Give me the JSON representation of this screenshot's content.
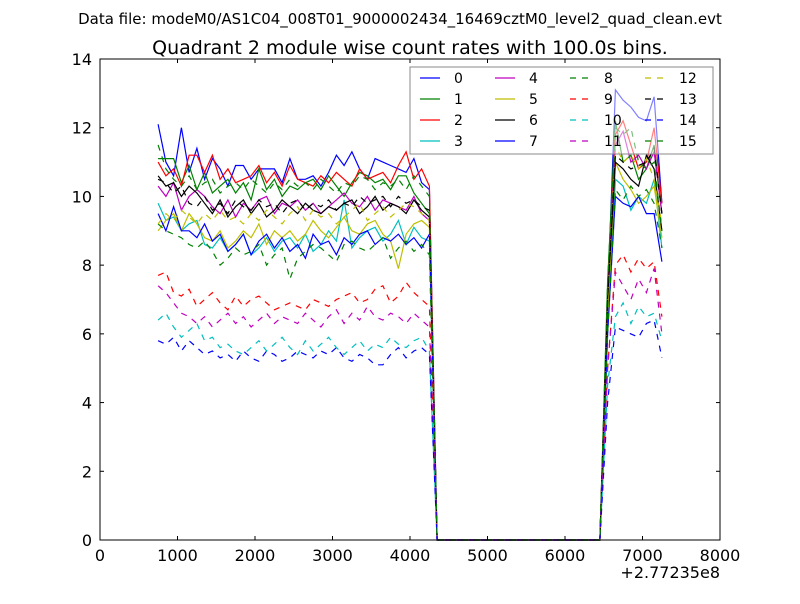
{
  "chart_data": {
    "type": "line",
    "suptitle": "Data file: modeM0/AS1C04_008T01_9000002434_16469cztM0_level2_quad_clean.evt",
    "title": "Quadrant 2 module wise count rates with 100.0s bins.",
    "xlabel": "",
    "ylabel": "",
    "x_offset_label": "+2.77235e8",
    "xlim": [
      0,
      8000
    ],
    "ylim": [
      0,
      14
    ],
    "xticks": [
      "0",
      "1000",
      "2000",
      "3000",
      "4000",
      "5000",
      "6000",
      "7000",
      "8000"
    ],
    "yticks": [
      "0",
      "2",
      "4",
      "6",
      "8",
      "10",
      "12",
      "14"
    ],
    "grid": false,
    "legend_placement": "top-right",
    "x_start": 750,
    "x_step": 100,
    "series": [
      {
        "name": "0",
        "color": "#0000ff",
        "dash": "solid",
        "values": [
          12.1,
          11.0,
          10.6,
          12.0,
          10.7,
          11.4,
          10.5,
          11.1,
          10.8,
          10.3,
          10.9,
          10.9,
          10.5,
          10.8,
          10.8,
          10.8,
          10.4,
          11.1,
          10.5,
          10.5,
          10.6,
          10.3,
          10.7,
          11.2,
          10.9,
          11.3,
          10.8,
          10.5,
          11.1,
          11.0,
          10.9,
          10.8,
          10.7,
          11.1,
          10.4,
          10.2,
          0,
          0,
          0,
          0,
          0,
          0,
          0,
          0,
          0,
          0,
          0,
          0,
          0,
          0,
          0,
          0,
          0,
          0,
          0,
          0,
          0,
          0,
          7.0,
          13.1,
          12.8,
          12.6,
          12.3,
          12.2,
          12.9,
          9.8
        ]
      },
      {
        "name": "1",
        "color": "#008000",
        "dash": "solid",
        "values": [
          11.1,
          11.1,
          11.1,
          10.4,
          10.9,
          10.2,
          10.7,
          10.1,
          10.3,
          10.5,
          10.1,
          10.4,
          9.9,
          10.8,
          10.2,
          10.5,
          10.0,
          10.3,
          10.2,
          10.4,
          10.5,
          10.2,
          10.6,
          10.3,
          10.0,
          10.4,
          10.7,
          10.6,
          10.4,
          10.5,
          10.2,
          10.6,
          10.6,
          10.1,
          9.8,
          9.5,
          0,
          0,
          0,
          0,
          0,
          0,
          0,
          0,
          0,
          0,
          0,
          0,
          0,
          0,
          0,
          0,
          0,
          0,
          0,
          0,
          0,
          0,
          7.5,
          12.2,
          11.0,
          11.2,
          10.5,
          10.8,
          11.5,
          9.5
        ]
      },
      {
        "name": "2",
        "color": "#ff0000",
        "dash": "solid",
        "values": [
          11.0,
          10.6,
          10.8,
          10.3,
          11.2,
          11.2,
          10.7,
          11.2,
          10.5,
          10.8,
          10.4,
          10.5,
          10.6,
          10.9,
          10.4,
          10.7,
          10.3,
          10.9,
          10.5,
          10.4,
          10.3,
          10.6,
          10.4,
          10.7,
          10.5,
          10.3,
          10.8,
          10.5,
          10.6,
          10.7,
          10.4,
          10.9,
          11.3,
          10.5,
          10.8,
          10.3,
          0,
          0,
          0,
          0,
          0,
          0,
          0,
          0,
          0,
          0,
          0,
          0,
          0,
          0,
          0,
          0,
          0,
          0,
          0,
          0,
          0,
          0,
          7.0,
          11.8,
          12.2,
          11.5,
          10.8,
          11.0,
          12.0,
          9.8
        ]
      },
      {
        "name": "3",
        "color": "#00bfbf",
        "dash": "solid",
        "values": [
          9.8,
          9.3,
          9.4,
          9.0,
          9.2,
          9.3,
          8.6,
          8.5,
          8.8,
          8.4,
          8.6,
          8.9,
          8.3,
          8.5,
          8.8,
          8.4,
          8.7,
          8.8,
          8.5,
          8.9,
          8.4,
          8.6,
          9.0,
          8.7,
          9.9,
          8.5,
          8.8,
          9.0,
          9.1,
          8.7,
          8.9,
          9.3,
          8.6,
          9.1,
          8.8,
          8.7,
          0,
          0,
          0,
          0,
          0,
          0,
          0,
          0,
          0,
          0,
          0,
          0,
          0,
          0,
          0,
          0,
          0,
          0,
          0,
          0,
          0,
          0,
          6.0,
          10.5,
          10.3,
          9.6,
          10.0,
          9.8,
          10.5,
          8.5
        ]
      },
      {
        "name": "4",
        "color": "#bf00bf",
        "dash": "solid",
        "values": [
          10.3,
          10.0,
          10.4,
          9.6,
          10.0,
          10.2,
          10.0,
          9.7,
          9.5,
          9.9,
          9.4,
          9.8,
          9.6,
          9.9,
          10.0,
          9.5,
          9.8,
          9.7,
          9.9,
          9.6,
          9.8,
          9.5,
          9.7,
          9.9,
          10.1,
          9.8,
          9.7,
          10.0,
          9.6,
          9.9,
          9.8,
          9.7,
          9.6,
          10.0,
          9.5,
          9.3,
          0,
          0,
          0,
          0,
          0,
          0,
          0,
          0,
          0,
          0,
          0,
          0,
          0,
          0,
          0,
          0,
          0,
          0,
          0,
          0,
          0,
          0,
          7.0,
          11.5,
          11.9,
          11.0,
          11.2,
          10.8,
          11.3,
          9.5
        ]
      },
      {
        "name": "5",
        "color": "#bfbf00",
        "dash": "solid",
        "values": [
          9.0,
          9.3,
          9.5,
          9.0,
          9.5,
          9.2,
          8.8,
          8.7,
          9.0,
          8.5,
          8.7,
          9.0,
          8.8,
          9.2,
          8.6,
          9.0,
          8.8,
          9.0,
          8.7,
          8.9,
          9.3,
          9.0,
          8.8,
          9.1,
          9.4,
          9.0,
          8.9,
          9.2,
          9.3,
          8.9,
          8.7,
          7.9,
          8.9,
          9.2,
          9.3,
          9.1,
          0,
          0,
          0,
          0,
          0,
          0,
          0,
          0,
          0,
          0,
          0,
          0,
          0,
          0,
          0,
          0,
          0,
          0,
          0,
          0,
          0,
          0,
          6.5,
          11.0,
          10.5,
          10.2,
          9.8,
          10.0,
          10.3,
          8.8
        ]
      },
      {
        "name": "6",
        "color": "#000000",
        "dash": "solid",
        "values": [
          10.6,
          10.3,
          10.4,
          10.0,
          10.3,
          10.1,
          9.8,
          9.5,
          9.9,
          9.4,
          9.7,
          9.9,
          9.5,
          9.8,
          9.4,
          9.6,
          9.9,
          9.7,
          9.5,
          9.8,
          9.6,
          9.5,
          9.7,
          9.6,
          9.8,
          9.9,
          9.5,
          9.7,
          10.0,
          9.6,
          9.8,
          9.7,
          9.5,
          9.9,
          9.6,
          9.4,
          0,
          0,
          0,
          0,
          0,
          0,
          0,
          0,
          0,
          0,
          0,
          0,
          0,
          0,
          0,
          0,
          0,
          0,
          0,
          0,
          0,
          0,
          7.0,
          11.0,
          10.8,
          10.5,
          10.3,
          11.2,
          10.8,
          9.0
        ]
      },
      {
        "name": "7",
        "color": "#0000ff",
        "dash": "solid",
        "values": [
          9.5,
          9.0,
          9.7,
          9.0,
          9.0,
          8.8,
          9.2,
          8.7,
          8.9,
          8.4,
          8.6,
          8.9,
          8.3,
          8.7,
          8.9,
          8.5,
          8.8,
          8.4,
          8.6,
          8.2,
          8.9,
          8.6,
          8.7,
          8.3,
          8.8,
          8.6,
          8.9,
          9.0,
          8.6,
          8.8,
          8.7,
          8.9,
          8.6,
          8.8,
          8.5,
          8.9,
          0,
          0,
          0,
          0,
          0,
          0,
          0,
          0,
          0,
          0,
          0,
          0,
          0,
          0,
          0,
          0,
          0,
          0,
          0,
          0,
          0,
          0,
          6.0,
          10.0,
          9.8,
          9.7,
          10.0,
          9.5,
          9.5,
          8.1
        ]
      },
      {
        "name": "8",
        "color": "#008000",
        "dash": "dashed",
        "values": [
          9.2,
          9.0,
          8.9,
          8.8,
          8.6,
          8.5,
          8.7,
          8.4,
          8.0,
          8.2,
          8.5,
          8.3,
          8.4,
          8.6,
          8.0,
          8.3,
          8.5,
          7.6,
          8.2,
          8.4,
          8.6,
          8.5,
          8.3,
          8.1,
          8.6,
          8.7,
          8.5,
          8.4,
          8.6,
          8.8,
          8.2,
          8.5,
          8.7,
          8.4,
          8.6,
          8.3,
          0,
          0,
          0,
          0,
          0,
          0,
          0,
          0,
          0,
          0,
          0,
          0,
          0,
          0,
          0,
          0,
          0,
          0,
          0,
          0,
          0,
          0,
          6.0,
          10.2,
          9.9,
          10.3,
          10.0,
          10.2,
          9.8,
          8.5
        ]
      },
      {
        "name": "9",
        "color": "#ff0000",
        "dash": "dashed",
        "values": [
          7.7,
          7.8,
          7.2,
          7.1,
          7.3,
          6.8,
          7.0,
          7.2,
          6.9,
          6.7,
          7.1,
          6.8,
          7.0,
          7.1,
          6.9,
          6.7,
          6.8,
          6.9,
          6.8,
          6.7,
          7.0,
          6.9,
          6.8,
          7.0,
          7.1,
          7.2,
          6.9,
          7.0,
          7.3,
          7.4,
          6.9,
          7.1,
          7.5,
          7.2,
          7.0,
          6.8,
          0,
          0,
          0,
          0,
          0,
          0,
          0,
          0,
          0,
          0,
          0,
          0,
          0,
          0,
          0,
          0,
          0,
          0,
          0,
          0,
          0,
          0,
          5.0,
          8.0,
          8.3,
          7.8,
          8.2,
          7.9,
          8.1,
          6.5
        ]
      },
      {
        "name": "10",
        "color": "#00bfbf",
        "dash": "dashed",
        "values": [
          6.4,
          6.6,
          6.2,
          5.9,
          6.1,
          6.3,
          5.8,
          5.9,
          5.6,
          5.7,
          5.5,
          5.4,
          5.6,
          5.8,
          5.5,
          5.7,
          5.9,
          5.6,
          5.4,
          5.8,
          5.5,
          5.7,
          5.9,
          5.6,
          5.4,
          5.6,
          5.8,
          5.5,
          5.7,
          5.6,
          5.9,
          5.7,
          5.6,
          5.8,
          5.9,
          5.5,
          0,
          0,
          0,
          0,
          0,
          0,
          0,
          0,
          0,
          0,
          0,
          0,
          0,
          0,
          0,
          0,
          0,
          0,
          0,
          0,
          0,
          0,
          4.5,
          6.5,
          6.9,
          6.3,
          6.8,
          6.5,
          6.6,
          5.8
        ]
      },
      {
        "name": "11",
        "color": "#bf00bf",
        "dash": "dashed",
        "values": [
          7.4,
          7.2,
          6.9,
          6.6,
          6.5,
          6.3,
          6.5,
          6.2,
          6.4,
          6.6,
          6.3,
          6.5,
          6.2,
          6.4,
          6.6,
          6.3,
          6.5,
          6.4,
          6.3,
          6.6,
          6.4,
          6.2,
          6.5,
          6.7,
          6.3,
          6.6,
          6.4,
          6.8,
          6.5,
          6.4,
          6.6,
          6.5,
          6.3,
          6.6,
          6.4,
          6.2,
          0,
          0,
          0,
          0,
          0,
          0,
          0,
          0,
          0,
          0,
          0,
          0,
          0,
          0,
          0,
          0,
          0,
          0,
          0,
          0,
          0,
          0,
          5.0,
          7.8,
          7.4,
          7.0,
          7.6,
          7.2,
          7.9,
          6.0
        ]
      },
      {
        "name": "12",
        "color": "#bfbf00",
        "dash": "dashed",
        "values": [
          9.2,
          9.5,
          9.3,
          9.6,
          9.4,
          9.2,
          9.5,
          9.3,
          9.6,
          9.3,
          9.4,
          9.2,
          9.5,
          9.3,
          9.6,
          9.4,
          9.2,
          9.5,
          9.7,
          9.3,
          9.6,
          9.4,
          9.5,
          9.2,
          9.4,
          9.6,
          9.8,
          9.3,
          9.5,
          9.7,
          9.4,
          9.6,
          9.8,
          9.7,
          9.5,
          9.3,
          0,
          0,
          0,
          0,
          0,
          0,
          0,
          0,
          0,
          0,
          0,
          0,
          0,
          0,
          0,
          0,
          0,
          0,
          0,
          0,
          0,
          0,
          7.0,
          11.5,
          11.0,
          11.2,
          10.8,
          11.1,
          10.5,
          9.2
        ]
      },
      {
        "name": "13",
        "color": "#000000",
        "dash": "dashed",
        "values": [
          10.5,
          10.4,
          10.1,
          10.3,
          9.8,
          9.7,
          10.0,
          9.6,
          9.8,
          9.5,
          9.9,
          9.7,
          9.6,
          9.9,
          9.7,
          9.8,
          9.5,
          9.8,
          9.9,
          9.6,
          9.8,
          9.7,
          9.9,
          9.6,
          9.8,
          9.7,
          10.0,
          9.8,
          9.9,
          10.0,
          9.7,
          10.0,
          9.8,
          9.9,
          9.7,
          9.6,
          0,
          0,
          0,
          0,
          0,
          0,
          0,
          0,
          0,
          0,
          0,
          0,
          0,
          0,
          0,
          0,
          0,
          0,
          0,
          0,
          0,
          0,
          7.0,
          11.2,
          11.0,
          10.8,
          10.9,
          11.0,
          11.4,
          9.5
        ]
      },
      {
        "name": "14",
        "color": "#0000ff",
        "dash": "dashed",
        "values": [
          5.8,
          5.7,
          5.9,
          5.5,
          5.8,
          5.6,
          5.4,
          5.5,
          5.3,
          5.4,
          5.2,
          5.5,
          5.3,
          5.2,
          5.5,
          5.4,
          5.2,
          5.3,
          5.5,
          5.4,
          5.3,
          5.5,
          5.4,
          5.6,
          5.3,
          5.2,
          5.4,
          5.3,
          5.1,
          5.1,
          5.4,
          5.6,
          5.3,
          5.5,
          5.6,
          5.4,
          0,
          0,
          0,
          0,
          0,
          0,
          0,
          0,
          0,
          0,
          0,
          0,
          0,
          0,
          0,
          0,
          0,
          0,
          0,
          0,
          0,
          0,
          4.0,
          6.2,
          6.1,
          6.0,
          5.9,
          6.3,
          6.4,
          5.3
        ]
      },
      {
        "name": "15",
        "color": "#008000",
        "dash": "dashed",
        "values": [
          11.5,
          10.8,
          10.5,
          10.3,
          10.6,
          10.2,
          10.4,
          10.5,
          10.1,
          10.3,
          10.4,
          10.2,
          10.5,
          10.3,
          10.1,
          10.4,
          10.2,
          10.5,
          10.3,
          10.4,
          10.2,
          10.5,
          10.3,
          10.1,
          10.4,
          10.3,
          10.6,
          10.5,
          10.2,
          10.4,
          10.3,
          10.5,
          10.2,
          10.6,
          10.3,
          10.0,
          0,
          0,
          0,
          0,
          0,
          0,
          0,
          0,
          0,
          0,
          0,
          0,
          0,
          0,
          0,
          0,
          0,
          0,
          0,
          0,
          0,
          0,
          7.5,
          12.0,
          11.8,
          12.0,
          11.0,
          10.8,
          11.0,
          9.0
        ]
      }
    ]
  }
}
